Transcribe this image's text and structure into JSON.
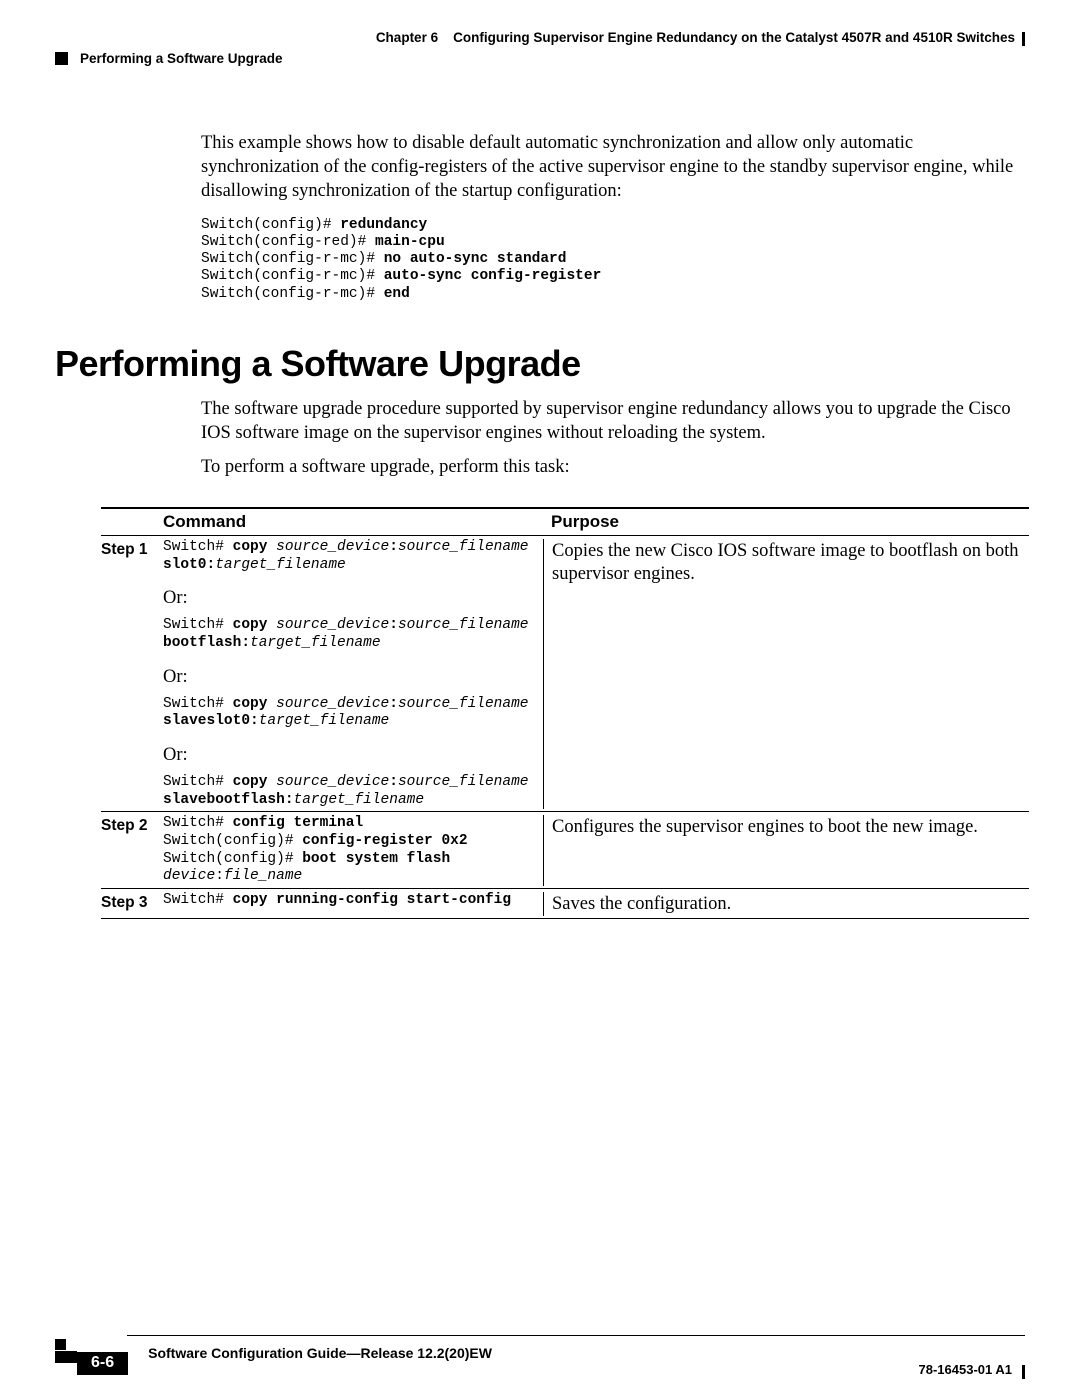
{
  "header": {
    "chapter_label": "Chapter 6",
    "chapter_title": "Configuring Supervisor Engine Redundancy on the Catalyst 4507R and 4510R Switches",
    "section_marker": "Performing a Software Upgrade"
  },
  "intro": {
    "paragraph": "This example shows how to disable default automatic synchronization and allow only automatic synchronization of the config-registers of the active supervisor engine to the standby supervisor engine, while disallowing synchronization of the startup configuration:"
  },
  "code_example": {
    "lines": [
      {
        "prompt": "Switch(config)# ",
        "bold": "redundancy"
      },
      {
        "prompt": "Switch(config-red)# ",
        "bold": "main-cpu"
      },
      {
        "prompt": "Switch(config-r-mc)# ",
        "bold": "no auto-sync standard"
      },
      {
        "prompt": "Switch(config-r-mc)# ",
        "bold": "auto-sync config-register"
      },
      {
        "prompt": "Switch(config-r-mc)# ",
        "bold": "end"
      }
    ]
  },
  "section": {
    "heading": "Performing a Software Upgrade",
    "para1": "The software upgrade procedure supported by supervisor engine redundancy allows you to upgrade the Cisco IOS software image on the supervisor engines without reloading the system.",
    "para2": "To perform a software upgrade, perform this task:"
  },
  "table": {
    "headers": {
      "command": "Command",
      "purpose": "Purpose"
    },
    "or_label": "Or:",
    "steps": [
      {
        "label": "Step 1",
        "purpose": "Copies the new Cisco IOS software image to bootflash on both supervisor engines.",
        "variants": [
          {
            "p": "Switch# ",
            "b1": "copy ",
            "i1": "source_device",
            "b2": ":",
            "i2": "source_filename",
            "nl_b": "slot0:",
            "nl_i": "target_filename"
          },
          {
            "p": "Switch# ",
            "b1": "copy ",
            "i1": "source_device",
            "b2": ":",
            "i2": "source_filename",
            "nl_b": "bootflash:",
            "nl_i": "target_filename"
          },
          {
            "p": "Switch# ",
            "b1": "copy ",
            "i1": "source_device",
            "b2": ":",
            "i2": "source_filename",
            "nl_b": "slaveslot0:",
            "nl_i": "target_filename"
          },
          {
            "p": "Switch# ",
            "b1": "copy ",
            "i1": "source_device",
            "b2": ":",
            "i2": "source_filename",
            "nl_b": "slavebootflash:",
            "nl_i": "target_filename"
          }
        ]
      },
      {
        "label": "Step 2",
        "purpose": "Configures the supervisor engines to boot the new image.",
        "lines": [
          {
            "p": "Switch# ",
            "b": "config terminal"
          },
          {
            "p": "Switch(config)# ",
            "b": "config-register 0x2"
          },
          {
            "p": "Switch(config)# ",
            "b": "boot system flash"
          },
          {
            "i": "device",
            "p2": ":",
            "i2": "file_name"
          }
        ]
      },
      {
        "label": "Step 3",
        "purpose": "Saves the configuration.",
        "lines": [
          {
            "p": "Switch# ",
            "b": "copy running-config start-config"
          }
        ]
      }
    ]
  },
  "footer": {
    "guide_title": "Software Configuration Guide—Release 12.2(20)EW",
    "page_number": "6-6",
    "pub_number": "78-16453-01 A1"
  }
}
